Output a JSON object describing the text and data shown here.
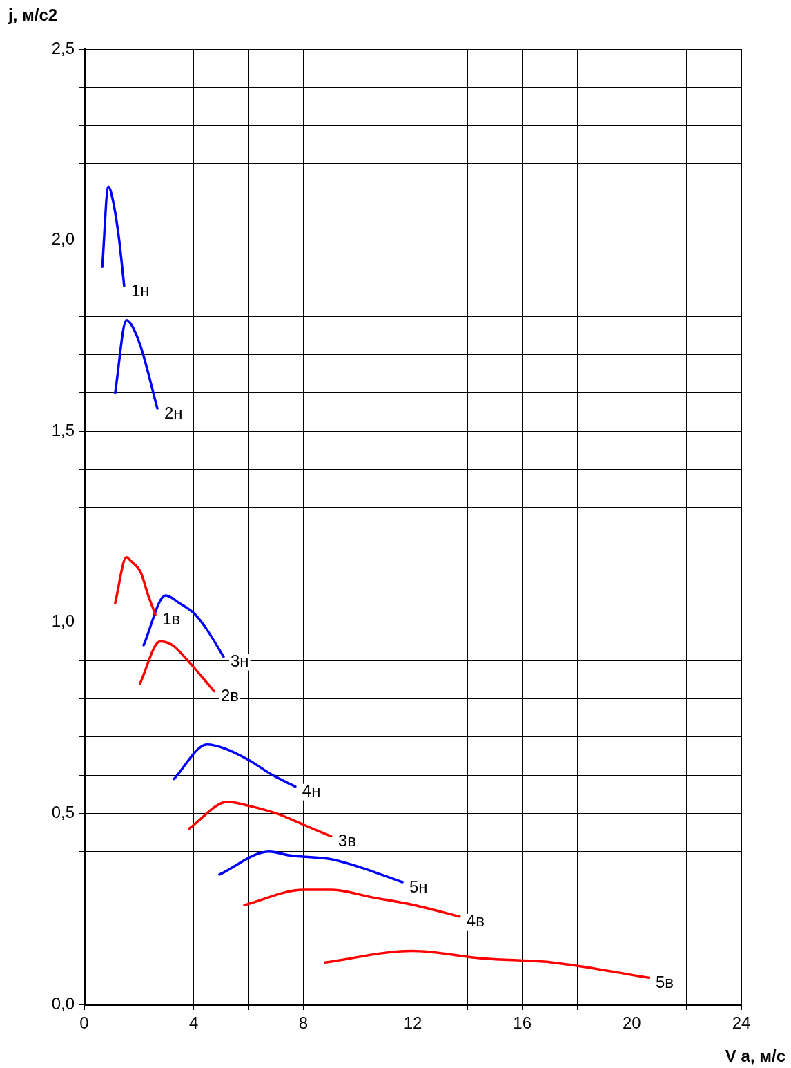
{
  "chart_data": {
    "type": "line",
    "xlabel": "V a, м/с",
    "ylabel": "j, м/с2",
    "xlim": [
      0,
      24
    ],
    "ylim": [
      0,
      2.5
    ],
    "xticks": [
      0,
      {
        "value": 2,
        "label": null
      },
      4,
      {
        "value": 6,
        "label": null
      },
      8,
      {
        "value": 10,
        "label": null
      },
      12,
      {
        "value": 14,
        "label": null
      },
      16,
      {
        "value": 18,
        "label": null
      },
      20,
      {
        "value": 22,
        "label": null
      },
      24
    ],
    "yticks": [
      {
        "value": 0,
        "label": "0,0"
      },
      {
        "value": 0.1,
        "label": null
      },
      {
        "value": 0.2,
        "label": null
      },
      {
        "value": 0.3,
        "label": null
      },
      {
        "value": 0.4,
        "label": null
      },
      {
        "value": 0.5,
        "label": "0,5"
      },
      {
        "value": 0.6,
        "label": null
      },
      {
        "value": 0.7,
        "label": null
      },
      {
        "value": 0.8,
        "label": null
      },
      {
        "value": 0.9,
        "label": null
      },
      {
        "value": 1.0,
        "label": "1,0"
      },
      {
        "value": 1.1,
        "label": null
      },
      {
        "value": 1.2,
        "label": null
      },
      {
        "value": 1.3,
        "label": null
      },
      {
        "value": 1.4,
        "label": null
      },
      {
        "value": 1.5,
        "label": "1,5"
      },
      {
        "value": 1.6,
        "label": null
      },
      {
        "value": 1.7,
        "label": null
      },
      {
        "value": 1.8,
        "label": null
      },
      {
        "value": 1.9,
        "label": null
      },
      {
        "value": 2.0,
        "label": "2,0"
      },
      {
        "value": 2.1,
        "label": null
      },
      {
        "value": 2.2,
        "label": null
      },
      {
        "value": 2.3,
        "label": null
      },
      {
        "value": 2.4,
        "label": null
      },
      {
        "value": 2.5,
        "label": "2,5"
      }
    ],
    "grid": true,
    "legend": false,
    "marker": "none",
    "line_style": "solid",
    "series": [
      {
        "name": "1н",
        "color": "#0000ff",
        "x": [
          0.66,
          0.88,
          1.03,
          1.26,
          1.46
        ],
        "values": [
          1.93,
          2.14,
          2.11,
          2.01,
          1.88
        ]
      },
      {
        "name": "2н",
        "color": "#0000ff",
        "x": [
          1.13,
          1.54,
          1.71,
          2.07,
          2.67
        ],
        "values": [
          1.6,
          1.79,
          1.78,
          1.72,
          1.56
        ]
      },
      {
        "name": "1в",
        "color": "#ff0000",
        "x": [
          1.13,
          1.54,
          1.71,
          2.07,
          2.34,
          2.6
        ],
        "values": [
          1.05,
          1.17,
          1.16,
          1.13,
          1.07,
          1.02
        ]
      },
      {
        "name": "3н",
        "color": "#0000ff",
        "x": [
          2.17,
          2.97,
          3.48,
          4.06,
          4.49,
          5.09
        ],
        "values": [
          0.94,
          1.07,
          1.05,
          1.02,
          0.98,
          0.91
        ]
      },
      {
        "name": "2в",
        "color": "#ff0000",
        "x": [
          2.04,
          2.77,
          3.23,
          3.78,
          4.74
        ],
        "values": [
          0.84,
          0.95,
          0.94,
          0.9,
          0.82
        ]
      },
      {
        "name": "4н",
        "color": "#0000ff",
        "x": [
          3.28,
          4.49,
          5.12,
          6.0,
          6.88,
          7.71
        ],
        "values": [
          0.59,
          0.68,
          0.67,
          0.64,
          0.6,
          0.57
        ]
      },
      {
        "name": "3в",
        "color": "#ff0000",
        "x": [
          3.83,
          5.24,
          6.0,
          7.01,
          8.02,
          9.02
        ],
        "values": [
          0.46,
          0.53,
          0.52,
          0.5,
          0.47,
          0.44
        ]
      },
      {
        "name": "5н",
        "color": "#0000ff",
        "x": [
          4.94,
          6.76,
          7.51,
          9.02,
          10.03,
          11.62
        ],
        "values": [
          0.34,
          0.4,
          0.39,
          0.38,
          0.36,
          0.32
        ]
      },
      {
        "name": "4в",
        "color": "#ff0000",
        "x": [
          5.85,
          8.02,
          9.02,
          10.54,
          12.05,
          13.71
        ],
        "values": [
          0.26,
          0.3,
          0.3,
          0.28,
          0.26,
          0.23
        ]
      },
      {
        "name": "5в",
        "color": "#ff0000",
        "x": [
          8.8,
          11.97,
          14.57,
          17.09,
          20.62
        ],
        "values": [
          0.11,
          0.14,
          0.12,
          0.11,
          0.07
        ]
      }
    ]
  }
}
